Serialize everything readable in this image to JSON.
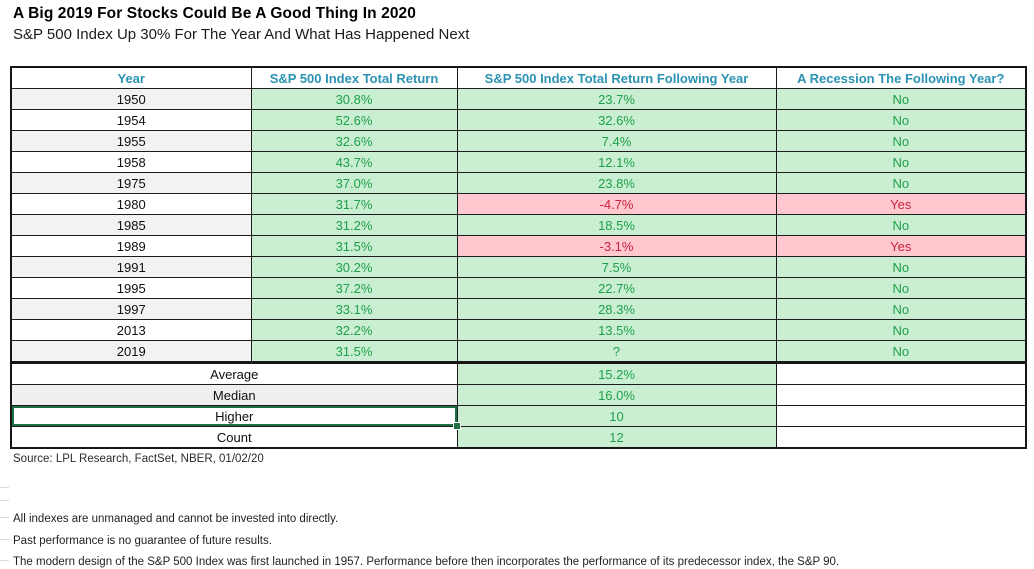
{
  "header": {
    "title": "A Big 2019 For Stocks Could Be A Good Thing In 2020",
    "subtitle": "S&P 500 Index Up 30% For The Year And What Has Happened Next"
  },
  "chart_data": {
    "type": "table",
    "columns": [
      "Year",
      "S&P 500 Index Total Return",
      "S&P 500 Index Total Return Following Year",
      "A Recession The Following Year?"
    ],
    "rows": [
      {
        "year": "1950",
        "total_return": "30.8%",
        "next_year_return": "23.7%",
        "recession": "No"
      },
      {
        "year": "1954",
        "total_return": "52.6%",
        "next_year_return": "32.6%",
        "recession": "No"
      },
      {
        "year": "1955",
        "total_return": "32.6%",
        "next_year_return": "7.4%",
        "recession": "No"
      },
      {
        "year": "1958",
        "total_return": "43.7%",
        "next_year_return": "12.1%",
        "recession": "No"
      },
      {
        "year": "1975",
        "total_return": "37.0%",
        "next_year_return": "23.8%",
        "recession": "No"
      },
      {
        "year": "1980",
        "total_return": "31.7%",
        "next_year_return": "-4.7%",
        "recession": "Yes"
      },
      {
        "year": "1985",
        "total_return": "31.2%",
        "next_year_return": "18.5%",
        "recession": "No"
      },
      {
        "year": "1989",
        "total_return": "31.5%",
        "next_year_return": "-3.1%",
        "recession": "Yes"
      },
      {
        "year": "1991",
        "total_return": "30.2%",
        "next_year_return": "7.5%",
        "recession": "No"
      },
      {
        "year": "1995",
        "total_return": "37.2%",
        "next_year_return": "22.7%",
        "recession": "No"
      },
      {
        "year": "1997",
        "total_return": "33.1%",
        "next_year_return": "28.3%",
        "recession": "No"
      },
      {
        "year": "2013",
        "total_return": "32.2%",
        "next_year_return": "13.5%",
        "recession": "No"
      },
      {
        "year": "2019",
        "total_return": "31.5%",
        "next_year_return": "?",
        "recession": "No"
      }
    ],
    "summary": [
      {
        "label": "Average",
        "value": "15.2%",
        "alt": false,
        "selected": false
      },
      {
        "label": "Median",
        "value": "16.0%",
        "alt": true,
        "selected": false
      },
      {
        "label": "Higher",
        "value": "10",
        "alt": false,
        "selected": true
      },
      {
        "label": "Count",
        "value": "12",
        "alt": false,
        "selected": false
      }
    ]
  },
  "footer": {
    "source": "Source: LPL Research, FactSet, NBER, 01/02/20",
    "notes": [
      "All indexes are unmanaged and cannot be invested into directly.",
      "Past performance is no guarantee of future results.",
      "The modern design of the S&P 500 Index was first launched in 1957. Performance before then incorporates the performance of its predecessor index, the S&P 90."
    ]
  },
  "colors": {
    "header_text": "#2b93b3",
    "positive_fill": "#c9eed2",
    "positive_text": "#1fa04a",
    "negative_fill": "#ffc7ce",
    "negative_text": "#c9233f",
    "selection_border": "#1e7145",
    "year_alt_fill": "#f2f2f2"
  }
}
